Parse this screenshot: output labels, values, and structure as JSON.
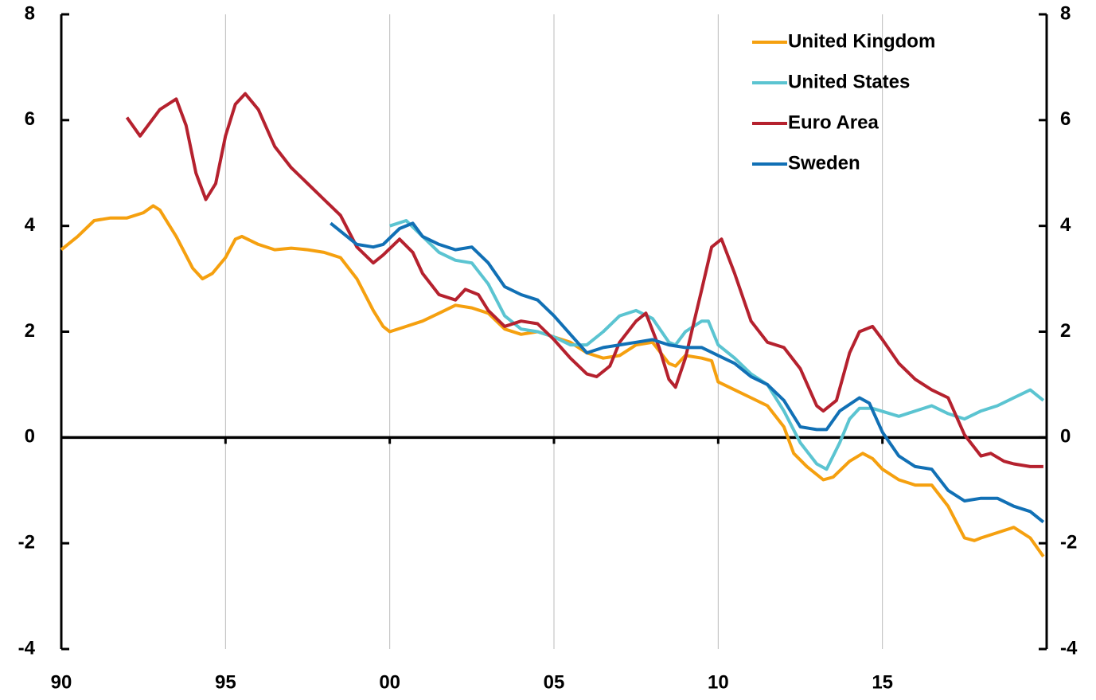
{
  "chart_data": {
    "type": "line",
    "xlim": [
      1990,
      2020
    ],
    "xticks": [
      {
        "value": 1990,
        "label": "90"
      },
      {
        "value": 1995,
        "label": "95"
      },
      {
        "value": 2000,
        "label": "00"
      },
      {
        "value": 2005,
        "label": "05"
      },
      {
        "value": 2010,
        "label": "10"
      },
      {
        "value": 2015,
        "label": "15"
      }
    ],
    "ylim": [
      -4,
      8
    ],
    "yticks": [
      -4,
      -2,
      0,
      2,
      4,
      6,
      8
    ],
    "y2lim": [
      -4,
      8
    ],
    "y2ticks": [
      -4,
      -2,
      0,
      2,
      4,
      6,
      8
    ],
    "grid": true,
    "legend": "upper right",
    "series": [
      {
        "name": "United Kingdom",
        "color": "#f5a00f",
        "x": [
          1990,
          1990.5,
          1991,
          1991.5,
          1992,
          1992.5,
          1992.8,
          1993,
          1993.5,
          1994,
          1994.3,
          1994.6,
          1995,
          1995.3,
          1995.5,
          1996,
          1996.5,
          1997,
          1997.5,
          1998,
          1998.5,
          1999,
          1999.5,
          1999.8,
          2000,
          2000.5,
          2001,
          2001.5,
          2002,
          2002.5,
          2003,
          2003.5,
          2004,
          2004.5,
          2005,
          2005.5,
          2006,
          2006.5,
          2007,
          2007.5,
          2008,
          2008.5,
          2008.7,
          2009,
          2009.5,
          2009.8,
          2010,
          2010.5,
          2011,
          2011.5,
          2012,
          2012.3,
          2012.7,
          2013.2,
          2013.5,
          2014,
          2014.4,
          2014.7,
          2015,
          2015.5,
          2016,
          2016.5,
          2017,
          2017.5,
          2017.8,
          2018,
          2018.5,
          2019,
          2019.5,
          2019.9
        ],
        "values": [
          3.55,
          3.8,
          4.1,
          4.15,
          4.15,
          4.25,
          4.38,
          4.3,
          3.8,
          3.2,
          3.0,
          3.1,
          3.4,
          3.75,
          3.8,
          3.65,
          3.55,
          3.58,
          3.55,
          3.5,
          3.4,
          3.0,
          2.4,
          2.1,
          2.0,
          2.1,
          2.2,
          2.35,
          2.5,
          2.45,
          2.35,
          2.05,
          1.95,
          2.0,
          1.9,
          1.8,
          1.6,
          1.5,
          1.55,
          1.75,
          1.8,
          1.4,
          1.35,
          1.55,
          1.5,
          1.45,
          1.05,
          0.9,
          0.75,
          0.6,
          0.2,
          -0.3,
          -0.55,
          -0.8,
          -0.75,
          -0.45,
          -0.3,
          -0.4,
          -0.6,
          -0.8,
          -0.9,
          -0.9,
          -1.3,
          -1.9,
          -1.95,
          -1.9,
          -1.8,
          -1.7,
          -1.9,
          -2.25
        ]
      },
      {
        "name": "United States",
        "color": "#5bc4d1",
        "x": [
          2000,
          2000.5,
          2001,
          2001.5,
          2002,
          2002.5,
          2003,
          2003.5,
          2004,
          2004.5,
          2005,
          2005.5,
          2006,
          2006.5,
          2007,
          2007.5,
          2008,
          2008.5,
          2008.7,
          2009,
          2009.5,
          2009.7,
          2010,
          2010.5,
          2011,
          2011.5,
          2012,
          2012.5,
          2013,
          2013.3,
          2013.7,
          2014,
          2014.3,
          2014.7,
          2015.5,
          2016,
          2016.5,
          2017,
          2017.5,
          2018,
          2018.5,
          2019,
          2019.5,
          2019.9
        ],
        "values": [
          4.0,
          4.1,
          3.8,
          3.5,
          3.35,
          3.3,
          2.9,
          2.3,
          2.05,
          2.0,
          1.9,
          1.75,
          1.75,
          2.0,
          2.3,
          2.4,
          2.25,
          1.8,
          1.75,
          2.0,
          2.2,
          2.2,
          1.75,
          1.5,
          1.2,
          1.0,
          0.5,
          -0.1,
          -0.5,
          -0.6,
          -0.1,
          0.35,
          0.55,
          0.55,
          0.4,
          0.5,
          0.6,
          0.45,
          0.35,
          0.5,
          0.6,
          0.75,
          0.9,
          0.7
        ]
      },
      {
        "name": "Euro Area",
        "color": "#b5212e",
        "x": [
          1992,
          1992.4,
          1992.7,
          1993,
          1993.5,
          1993.8,
          1994.1,
          1994.4,
          1994.7,
          1995,
          1995.3,
          1995.6,
          1996,
          1996.5,
          1997,
          1997.5,
          1998,
          1998.5,
          1999,
          1999.5,
          1999.8,
          2000.3,
          2000.7,
          2001,
          2001.5,
          2002,
          2002.3,
          2002.7,
          2003,
          2003.5,
          2004,
          2004.5,
          2005,
          2005.5,
          2006,
          2006.3,
          2006.7,
          2007,
          2007.5,
          2007.8,
          2008.2,
          2008.5,
          2008.7,
          2009,
          2009.5,
          2009.8,
          2010.1,
          2010.5,
          2011,
          2011.5,
          2012,
          2012.5,
          2013,
          2013.2,
          2013.6,
          2014,
          2014.3,
          2014.7,
          2015,
          2015.5,
          2016,
          2016.5,
          2017,
          2017.5,
          2018,
          2018.3,
          2018.7,
          2019,
          2019.5,
          2019.9
        ],
        "values": [
          6.05,
          5.7,
          5.95,
          6.2,
          6.4,
          5.9,
          5.0,
          4.5,
          4.8,
          5.7,
          6.3,
          6.5,
          6.2,
          5.5,
          5.1,
          4.8,
          4.5,
          4.2,
          3.6,
          3.3,
          3.45,
          3.75,
          3.5,
          3.1,
          2.7,
          2.6,
          2.8,
          2.7,
          2.4,
          2.1,
          2.2,
          2.15,
          1.85,
          1.5,
          1.2,
          1.15,
          1.35,
          1.8,
          2.2,
          2.35,
          1.7,
          1.1,
          0.95,
          1.5,
          2.8,
          3.6,
          3.75,
          3.1,
          2.2,
          1.8,
          1.7,
          1.3,
          0.6,
          0.5,
          0.7,
          1.6,
          2.0,
          2.1,
          1.85,
          1.4,
          1.1,
          0.9,
          0.75,
          0.05,
          -0.35,
          -0.3,
          -0.45,
          -0.5,
          -0.55,
          -0.55
        ]
      },
      {
        "name": "Sweden",
        "color": "#1170b5",
        "x": [
          1998.2,
          1998.5,
          1999,
          1999.5,
          1999.8,
          2000.3,
          2000.7,
          2001,
          2001.5,
          2002,
          2002.5,
          2003,
          2003.5,
          2004,
          2004.5,
          2005,
          2005.5,
          2006,
          2006.5,
          2007,
          2007.5,
          2008,
          2008.5,
          2009,
          2009.5,
          2010,
          2010.5,
          2011,
          2011.5,
          2012,
          2012.5,
          2013,
          2013.3,
          2013.7,
          2014.3,
          2014.6,
          2015,
          2015.5,
          2016,
          2016.5,
          2017,
          2017.5,
          2018,
          2018.5,
          2019,
          2019.5,
          2019.9
        ],
        "values": [
          4.05,
          3.9,
          3.65,
          3.6,
          3.65,
          3.95,
          4.05,
          3.8,
          3.65,
          3.55,
          3.6,
          3.3,
          2.85,
          2.7,
          2.6,
          2.3,
          1.95,
          1.6,
          1.7,
          1.75,
          1.8,
          1.85,
          1.75,
          1.7,
          1.7,
          1.55,
          1.4,
          1.15,
          1.0,
          0.7,
          0.2,
          0.15,
          0.15,
          0.5,
          0.75,
          0.65,
          0.1,
          -0.35,
          -0.55,
          -0.6,
          -1.0,
          -1.2,
          -1.15,
          -1.15,
          -1.3,
          -1.4,
          -1.6
        ]
      }
    ]
  }
}
